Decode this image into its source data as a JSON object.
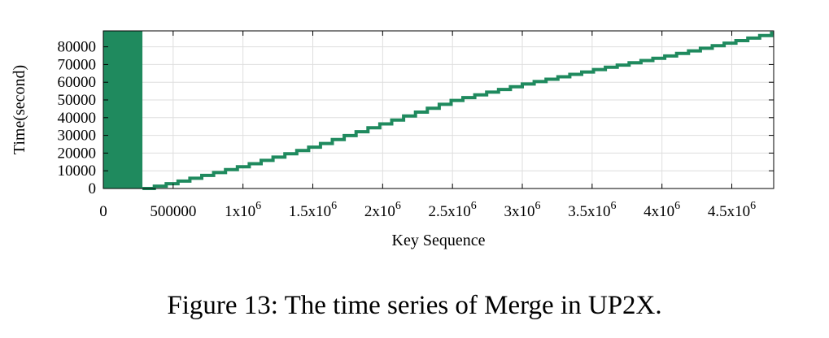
{
  "caption": "Figure 13: The time series of Merge in UP2X.",
  "chart_data": {
    "type": "line",
    "title": "",
    "xlabel": "Key Sequence",
    "ylabel": "Time(second)",
    "xlim": [
      0,
      4800000
    ],
    "ylim": [
      0,
      89000
    ],
    "grid": true,
    "legend": "none",
    "color": "#1f8a5e",
    "x_ticks": [
      {
        "value": 0,
        "base": "0",
        "sup": ""
      },
      {
        "value": 500000,
        "base": "500000",
        "sup": ""
      },
      {
        "value": 1000000,
        "base": "1x10",
        "sup": "6"
      },
      {
        "value": 1500000,
        "base": "1.5x10",
        "sup": "6"
      },
      {
        "value": 2000000,
        "base": "2x10",
        "sup": "6"
      },
      {
        "value": 2500000,
        "base": "2.5x10",
        "sup": "6"
      },
      {
        "value": 3000000,
        "base": "3x10",
        "sup": "6"
      },
      {
        "value": 3500000,
        "base": "3.5x10",
        "sup": "6"
      },
      {
        "value": 4000000,
        "base": "4x10",
        "sup": "6"
      },
      {
        "value": 4500000,
        "base": "4.5x10",
        "sup": "6"
      }
    ],
    "y_ticks": [
      {
        "value": 0,
        "label": "0"
      },
      {
        "value": 10000,
        "label": "10000"
      },
      {
        "value": 20000,
        "label": "20000"
      },
      {
        "value": 30000,
        "label": "30000"
      },
      {
        "value": 40000,
        "label": "40000"
      },
      {
        "value": 50000,
        "label": "50000"
      },
      {
        "value": 60000,
        "label": "60000"
      },
      {
        "value": 70000,
        "label": "70000"
      },
      {
        "value": 80000,
        "label": "80000"
      }
    ],
    "dense_block": {
      "x_start": 0,
      "x_end": 280000,
      "y_start": 0,
      "y_end": 89000
    },
    "series": [
      {
        "x": [
          280000,
          500000,
          1000000,
          1500000,
          2000000,
          2500000,
          3000000,
          3500000,
          4000000,
          4500000,
          4800000
        ],
        "y": [
          0,
          3500,
          13000,
          24000,
          37000,
          50000,
          59000,
          67000,
          74500,
          83000,
          88000
        ]
      }
    ]
  }
}
